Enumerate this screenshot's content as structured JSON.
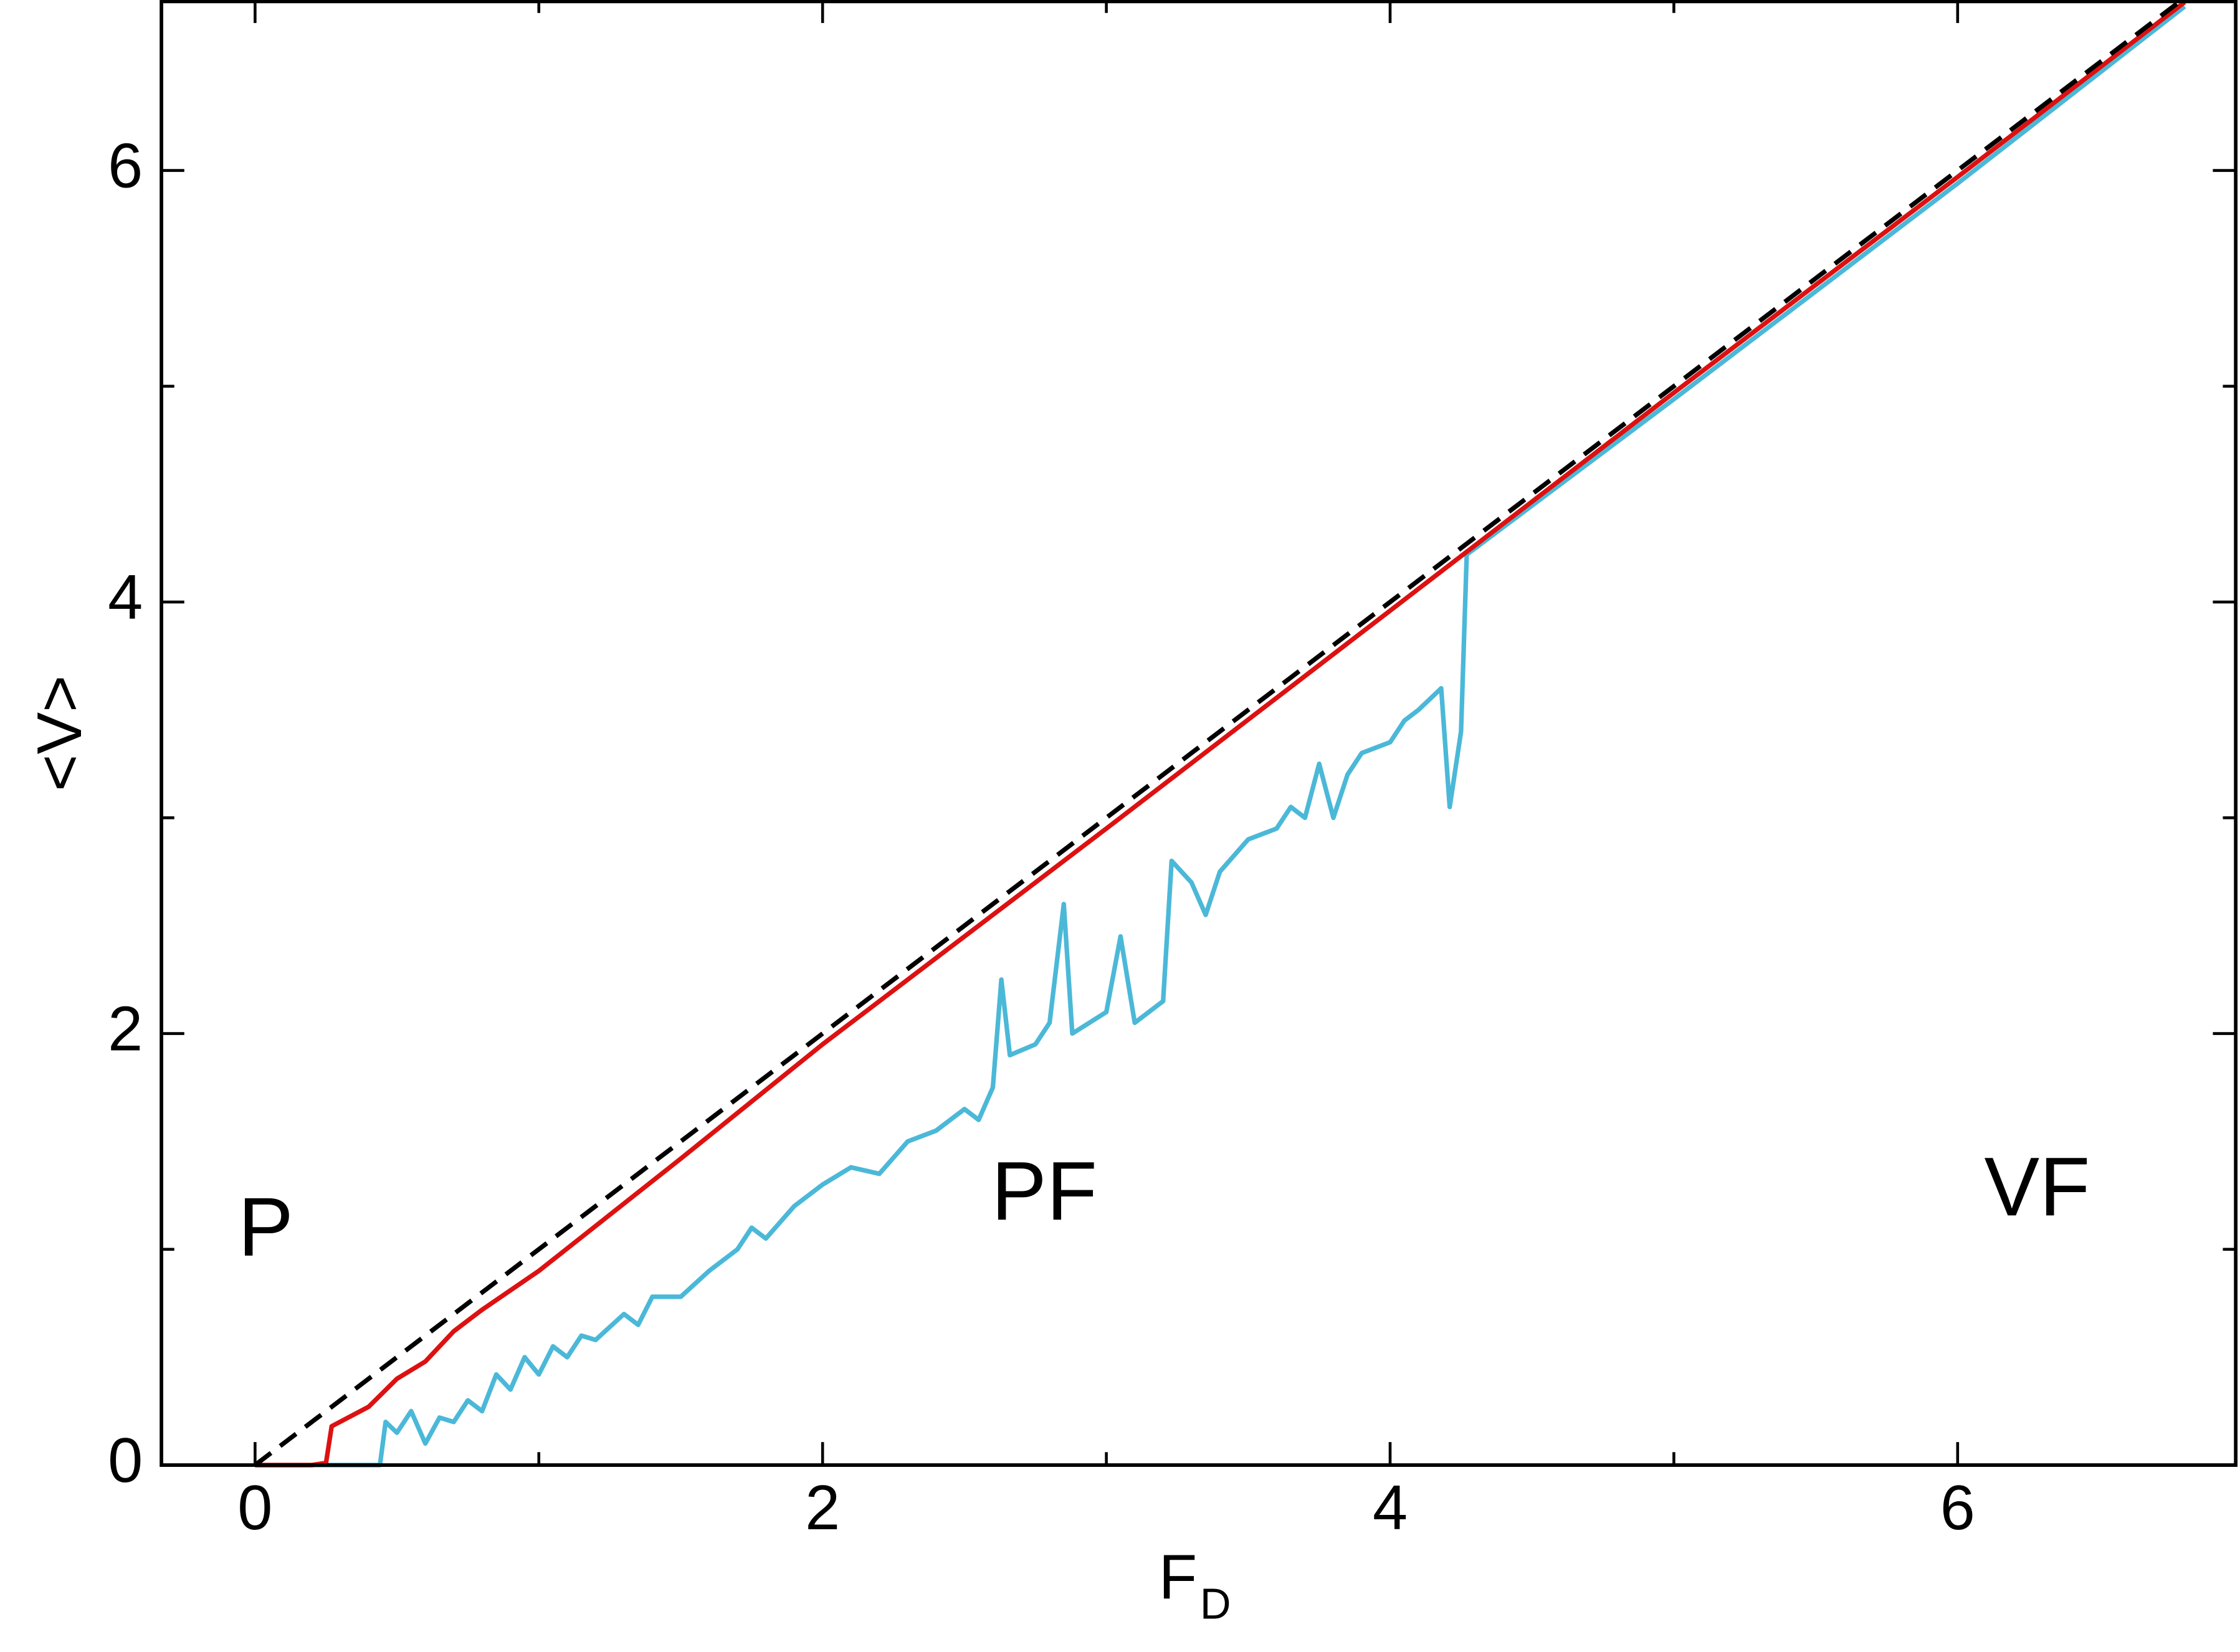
{
  "chart_data": {
    "type": "line",
    "xlabel": "F",
    "xlabel_subscript": "D",
    "ylabel": "<V>",
    "annotations": [
      "P",
      "PF",
      "VF"
    ],
    "xlim": [
      -0.33,
      6.98
    ],
    "ylim": [
      0,
      6.79
    ],
    "xticks": [
      0,
      2,
      4,
      6
    ],
    "yticks": [
      0,
      2,
      4,
      6
    ],
    "xminor_ticks": [
      1,
      3,
      5
    ],
    "yminor_ticks": [
      1,
      3,
      5
    ],
    "series": [
      {
        "color": "#4bb8d8",
        "dash": false,
        "x": [
          0,
          0.44,
          0.46,
          0.5,
          0.55,
          0.6,
          0.65,
          0.7,
          0.75,
          0.8,
          0.85,
          0.9,
          0.95,
          1.0,
          1.05,
          1.1,
          1.15,
          1.2,
          1.3,
          1.35,
          1.4,
          1.5,
          1.6,
          1.7,
          1.75,
          1.8,
          1.9,
          2.0,
          2.1,
          2.2,
          2.3,
          2.4,
          2.5,
          2.55,
          2.6,
          2.63,
          2.66,
          2.75,
          2.8,
          2.85,
          2.88,
          3.0,
          3.05,
          3.1,
          3.2,
          3.23,
          3.3,
          3.35,
          3.4,
          3.5,
          3.6,
          3.65,
          3.7,
          3.75,
          3.8,
          3.85,
          3.9,
          4.0,
          4.05,
          4.1,
          4.18,
          4.21,
          4.25,
          4.27,
          5.0,
          6.0,
          6.8
        ],
        "values": [
          0,
          0,
          0.2,
          0.15,
          0.25,
          0.1,
          0.22,
          0.2,
          0.3,
          0.25,
          0.42,
          0.35,
          0.5,
          0.42,
          0.55,
          0.5,
          0.6,
          0.58,
          0.7,
          0.65,
          0.78,
          0.78,
          0.9,
          1.0,
          1.1,
          1.05,
          1.2,
          1.3,
          1.38,
          1.35,
          1.5,
          1.55,
          1.65,
          1.6,
          1.75,
          2.25,
          1.9,
          1.95,
          2.05,
          2.6,
          2.0,
          2.1,
          2.45,
          2.05,
          2.15,
          2.8,
          2.7,
          2.55,
          2.75,
          2.9,
          2.95,
          3.05,
          3.0,
          3.25,
          3.0,
          3.2,
          3.3,
          3.35,
          3.45,
          3.5,
          3.6,
          3.05,
          3.4,
          4.22,
          4.94,
          5.94,
          6.76
        ]
      },
      {
        "color": "#dd1111",
        "dash": false,
        "x": [
          0,
          0.2,
          0.25,
          0.27,
          0.4,
          0.5,
          0.6,
          0.7,
          0.8,
          1.0,
          1.5,
          2.0,
          3.0,
          4.0,
          5.0,
          6.0,
          6.8
        ],
        "values": [
          0,
          0,
          0.01,
          0.18,
          0.27,
          0.4,
          0.48,
          0.62,
          0.72,
          0.9,
          1.42,
          1.95,
          2.95,
          3.96,
          4.97,
          5.97,
          6.78
        ]
      },
      {
        "color": "#000000",
        "dash": true,
        "x": [
          0,
          6.79
        ],
        "values": [
          0,
          6.79
        ]
      }
    ]
  }
}
